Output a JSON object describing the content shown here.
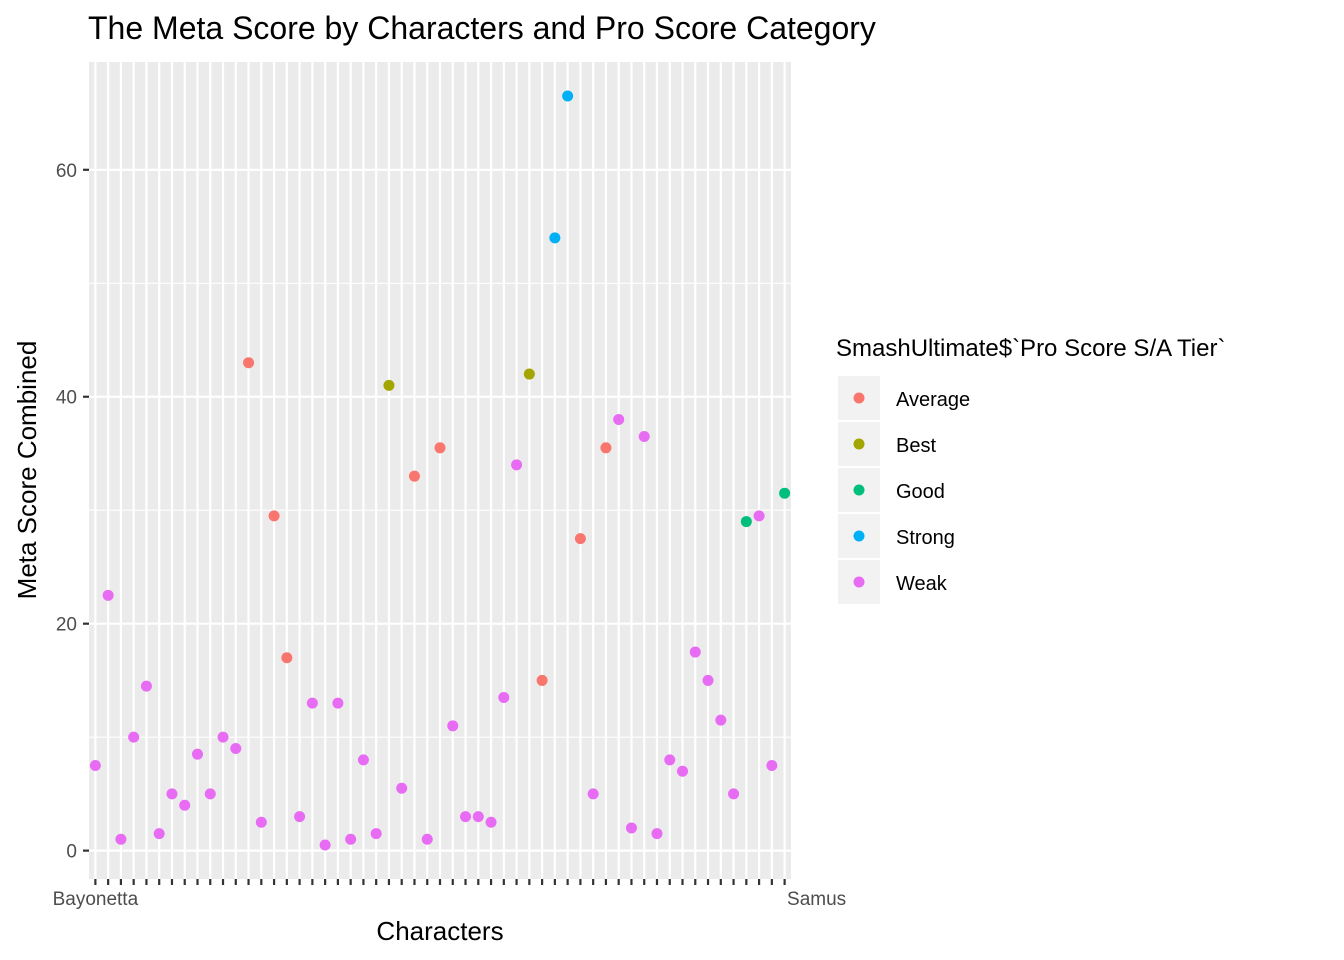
{
  "chart_data": {
    "type": "scatter",
    "title": "The Meta Score by Characters and Pro Score Category",
    "xlabel": "Characters",
    "ylabel": "Meta Score Combined",
    "ylim": [
      -2.5,
      69.5
    ],
    "yticks": [
      0,
      20,
      40,
      60
    ],
    "x_tick_labels_visible": [
      "Bayonetta",
      "Samus"
    ],
    "legend": {
      "title": "SmashUltimate$`Pro Score S/A Tier`",
      "placement": "right",
      "entries": [
        {
          "name": "Average",
          "color": "#F8766D"
        },
        {
          "name": "Best",
          "color": "#A3A500"
        },
        {
          "name": "Good",
          "color": "#00BF7D"
        },
        {
          "name": "Strong",
          "color": "#00B0F6"
        },
        {
          "name": "Weak",
          "color": "#E76BF3"
        }
      ]
    },
    "points": [
      {
        "i": 1,
        "y": 7.5,
        "tier": "Weak"
      },
      {
        "i": 2,
        "y": 22.5,
        "tier": "Weak"
      },
      {
        "i": 3,
        "y": 1,
        "tier": "Weak"
      },
      {
        "i": 4,
        "y": 10,
        "tier": "Weak"
      },
      {
        "i": 5,
        "y": 14.5,
        "tier": "Weak"
      },
      {
        "i": 6,
        "y": 1.5,
        "tier": "Weak"
      },
      {
        "i": 7,
        "y": 5,
        "tier": "Weak"
      },
      {
        "i": 8,
        "y": 4,
        "tier": "Weak"
      },
      {
        "i": 9,
        "y": 8.5,
        "tier": "Weak"
      },
      {
        "i": 10,
        "y": 5,
        "tier": "Weak"
      },
      {
        "i": 11,
        "y": 10,
        "tier": "Weak"
      },
      {
        "i": 12,
        "y": 9,
        "tier": "Weak"
      },
      {
        "i": 13,
        "y": 43,
        "tier": "Average"
      },
      {
        "i": 14,
        "y": 2.5,
        "tier": "Weak"
      },
      {
        "i": 15,
        "y": 29.5,
        "tier": "Average"
      },
      {
        "i": 16,
        "y": 17,
        "tier": "Average"
      },
      {
        "i": 17,
        "y": 3,
        "tier": "Weak"
      },
      {
        "i": 18,
        "y": 13,
        "tier": "Weak"
      },
      {
        "i": 19,
        "y": 0.5,
        "tier": "Weak"
      },
      {
        "i": 20,
        "y": 13,
        "tier": "Weak"
      },
      {
        "i": 21,
        "y": 1,
        "tier": "Weak"
      },
      {
        "i": 22,
        "y": 8,
        "tier": "Weak"
      },
      {
        "i": 23,
        "y": 1.5,
        "tier": "Weak"
      },
      {
        "i": 24,
        "y": 41,
        "tier": "Best"
      },
      {
        "i": 25,
        "y": 5.5,
        "tier": "Weak"
      },
      {
        "i": 26,
        "y": 33,
        "tier": "Average"
      },
      {
        "i": 27,
        "y": 1,
        "tier": "Weak"
      },
      {
        "i": 28,
        "y": 35.5,
        "tier": "Average"
      },
      {
        "i": 29,
        "y": 11,
        "tier": "Weak"
      },
      {
        "i": 30,
        "y": 3,
        "tier": "Weak"
      },
      {
        "i": 31,
        "y": 3,
        "tier": "Weak"
      },
      {
        "i": 32,
        "y": 2.5,
        "tier": "Weak"
      },
      {
        "i": 33,
        "y": 13.5,
        "tier": "Weak"
      },
      {
        "i": 34,
        "y": 34,
        "tier": "Weak"
      },
      {
        "i": 35,
        "y": 42,
        "tier": "Best"
      },
      {
        "i": 36,
        "y": 15,
        "tier": "Average"
      },
      {
        "i": 37,
        "y": 54,
        "tier": "Strong"
      },
      {
        "i": 38,
        "y": 66.5,
        "tier": "Strong"
      },
      {
        "i": 39,
        "y": 27.5,
        "tier": "Average"
      },
      {
        "i": 40,
        "y": 5,
        "tier": "Weak"
      },
      {
        "i": 41,
        "y": 35.5,
        "tier": "Average"
      },
      {
        "i": 42,
        "y": 38,
        "tier": "Weak"
      },
      {
        "i": 43,
        "y": 2,
        "tier": "Weak"
      },
      {
        "i": 44,
        "y": 36.5,
        "tier": "Weak"
      },
      {
        "i": 45,
        "y": 1.5,
        "tier": "Weak"
      },
      {
        "i": 46,
        "y": 8,
        "tier": "Weak"
      },
      {
        "i": 47,
        "y": 7,
        "tier": "Weak"
      },
      {
        "i": 48,
        "y": 17.5,
        "tier": "Weak"
      },
      {
        "i": 49,
        "y": 15,
        "tier": "Weak"
      },
      {
        "i": 50,
        "y": 11.5,
        "tier": "Weak"
      },
      {
        "i": 51,
        "y": 5,
        "tier": "Weak"
      },
      {
        "i": 52,
        "y": 29,
        "tier": "Good"
      },
      {
        "i": 53,
        "y": 29.5,
        "tier": "Weak"
      },
      {
        "i": 54,
        "y": 7.5,
        "tier": "Weak"
      },
      {
        "i": 55,
        "y": 31.5,
        "tier": "Good"
      }
    ]
  },
  "colors": {
    "panel_bg": "#EBEBEB",
    "grid_major": "#FFFFFF",
    "axis_text": "#4D4D4D",
    "tick_mark": "#333333"
  }
}
